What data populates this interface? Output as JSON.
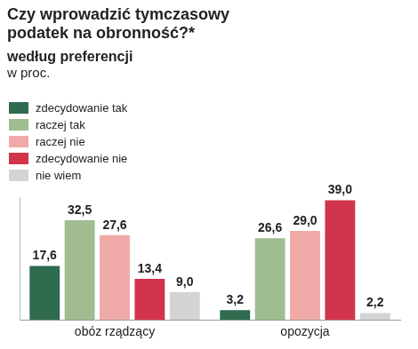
{
  "chart_data": {
    "type": "bar",
    "title": "Czy wprowadzić tymczasowy podatek na obronność?*",
    "subtitle": "według preferencji",
    "ylabel": "w proc.",
    "categories": [
      "obóz rządzący",
      "opozycja"
    ],
    "series": [
      {
        "name": "zdecydowanie tak",
        "color": "#2e6b4f",
        "values": [
          17.6,
          3.2
        ],
        "value_labels": [
          "17,6",
          "3,2"
        ]
      },
      {
        "name": "raczej tak",
        "color": "#9fbd91",
        "values": [
          32.5,
          26.6
        ],
        "value_labels": [
          "32,5",
          "26,6"
        ]
      },
      {
        "name": "raczej nie",
        "color": "#efaaa8",
        "values": [
          27.6,
          29.0
        ],
        "value_labels": [
          "27,6",
          "29,0"
        ]
      },
      {
        "name": "zdecydowanie nie",
        "color": "#d1344b",
        "values": [
          13.4,
          39.0
        ],
        "value_labels": [
          "13,4",
          "39,0"
        ]
      },
      {
        "name": "nie wiem",
        "color": "#d4d4d4",
        "values": [
          9.0,
          2.2
        ],
        "value_labels": [
          "9,0",
          "2,2"
        ]
      }
    ],
    "ylim": [
      0,
      40
    ],
    "grid": false,
    "legend": "top-left",
    "data_labels": true,
    "tick_labels": "x"
  }
}
